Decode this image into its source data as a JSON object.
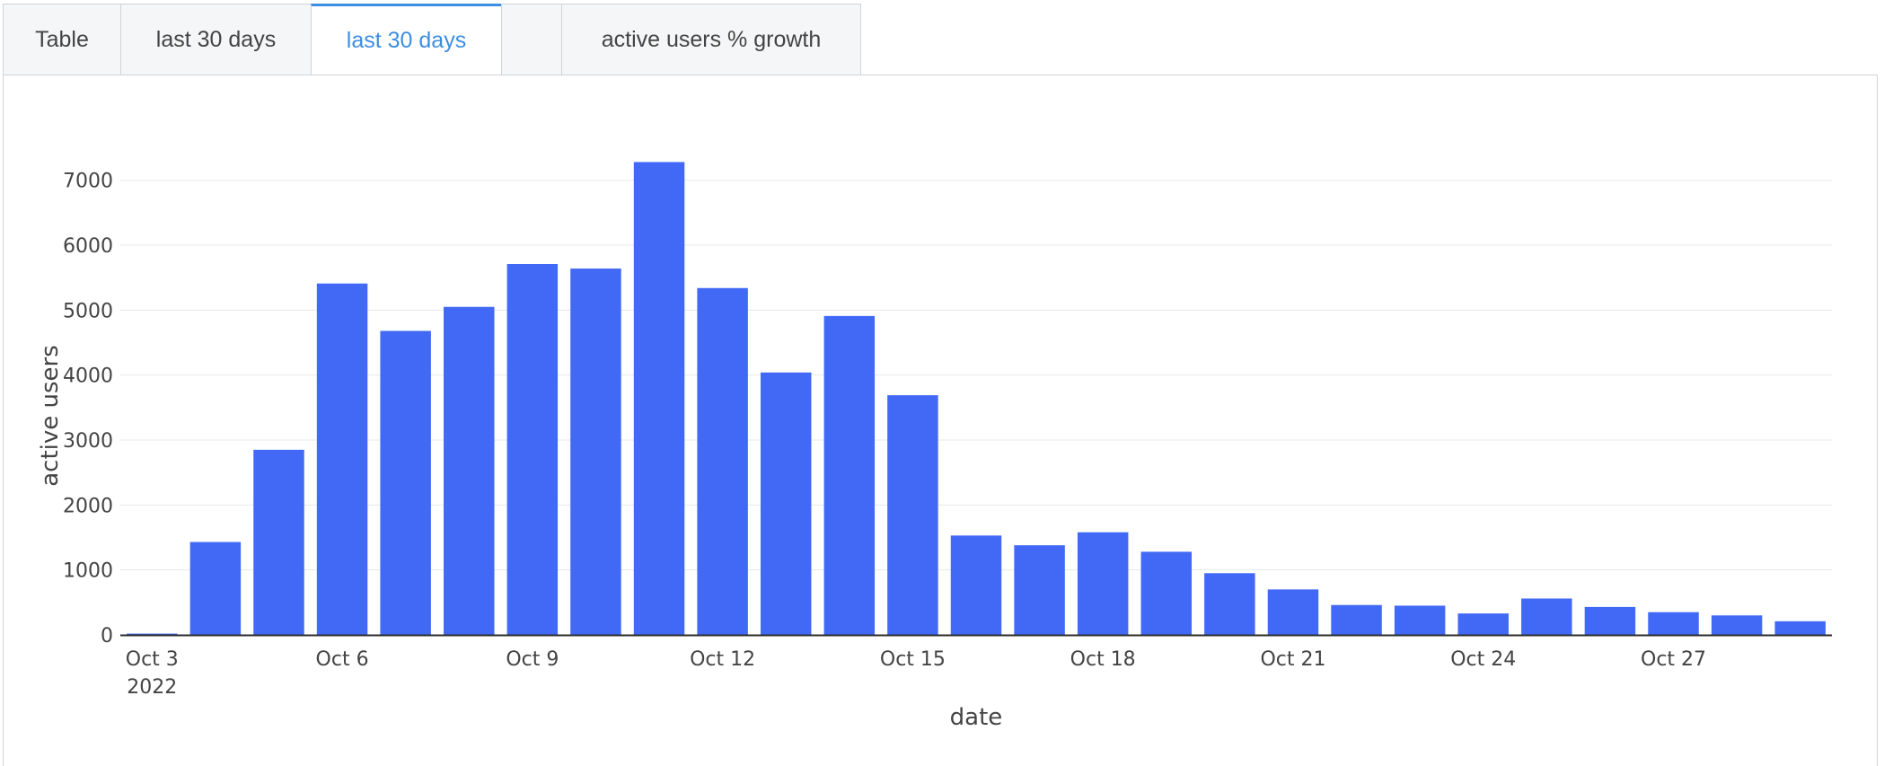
{
  "tabs": [
    {
      "label": "Table",
      "active": false
    },
    {
      "label": "last 30 days",
      "active": false
    },
    {
      "label": "last 30 days",
      "active": true
    },
    {
      "label": "",
      "active": false
    },
    {
      "label": "active users % growth",
      "active": false
    }
  ],
  "colors": {
    "bar": "#4169f5",
    "active_tab": "#3d8ee0",
    "grid": "#e6e8eb"
  },
  "chart_data": {
    "type": "bar",
    "title": "",
    "xlabel": "date",
    "ylabel": "active users",
    "ylim": [
      0,
      7300
    ],
    "grid": true,
    "x": [
      "2022-10-03",
      "2022-10-04",
      "2022-10-05",
      "2022-10-06",
      "2022-10-07",
      "2022-10-08",
      "2022-10-09",
      "2022-10-10",
      "2022-10-11",
      "2022-10-12",
      "2022-10-13",
      "2022-10-14",
      "2022-10-15",
      "2022-10-16",
      "2022-10-17",
      "2022-10-18",
      "2022-10-19",
      "2022-10-20",
      "2022-10-21",
      "2022-10-22",
      "2022-10-23",
      "2022-10-24",
      "2022-10-25",
      "2022-10-26",
      "2022-10-27",
      "2022-10-28",
      "2022-10-29"
    ],
    "values": [
      20,
      1430,
      2850,
      5410,
      4680,
      5050,
      5710,
      5640,
      7280,
      5340,
      4040,
      4910,
      3690,
      1530,
      1380,
      1580,
      1280,
      950,
      700,
      460,
      450,
      330,
      560,
      430,
      350,
      300,
      210
    ],
    "yticks": [
      {
        "value": 0,
        "label": "0"
      },
      {
        "value": 1000,
        "label": "1000"
      },
      {
        "value": 2000,
        "label": "2000"
      },
      {
        "value": 3000,
        "label": "3000"
      },
      {
        "value": 4000,
        "label": "4000"
      },
      {
        "value": 5000,
        "label": "5000"
      },
      {
        "value": 6000,
        "label": "6000"
      },
      {
        "value": 7000,
        "label": "7000"
      }
    ],
    "xticks": [
      {
        "value": "2022-10-03",
        "label": "Oct 3",
        "sublabel": "2022"
      },
      {
        "value": "2022-10-06",
        "label": "Oct 6",
        "sublabel": ""
      },
      {
        "value": "2022-10-09",
        "label": "Oct 9",
        "sublabel": ""
      },
      {
        "value": "2022-10-12",
        "label": "Oct 12",
        "sublabel": ""
      },
      {
        "value": "2022-10-15",
        "label": "Oct 15",
        "sublabel": ""
      },
      {
        "value": "2022-10-18",
        "label": "Oct 18",
        "sublabel": ""
      },
      {
        "value": "2022-10-21",
        "label": "Oct 21",
        "sublabel": ""
      },
      {
        "value": "2022-10-24",
        "label": "Oct 24",
        "sublabel": ""
      },
      {
        "value": "2022-10-27",
        "label": "Oct 27",
        "sublabel": ""
      }
    ]
  }
}
